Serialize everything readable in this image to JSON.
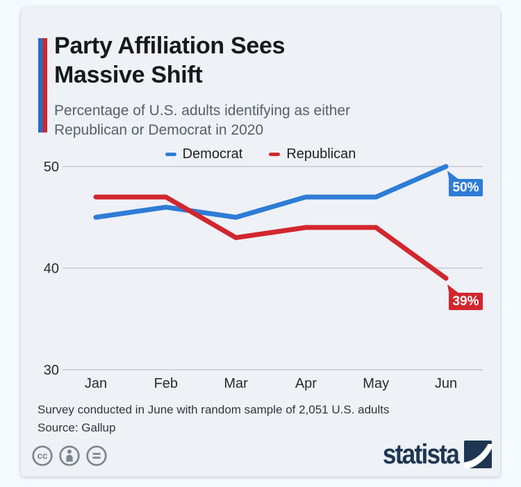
{
  "header": {
    "title": "Party Affiliation Sees Massive Shift",
    "subtitle": "Percentage of U.S. adults identifying as either Republican or Democrat in 2020"
  },
  "chart_data": {
    "type": "line",
    "title": "Party Affiliation Sees Massive Shift",
    "categories": [
      "Jan",
      "Feb",
      "Mar",
      "Apr",
      "May",
      "Jun"
    ],
    "series": [
      {
        "name": "Democrat",
        "color": "#2e7cd6",
        "values": [
          45,
          46,
          45,
          47,
          47,
          50
        ],
        "end_label": "50%"
      },
      {
        "name": "Republican",
        "color": "#d2262e",
        "values": [
          47,
          47,
          43,
          44,
          44,
          39
        ],
        "end_label": "39%"
      }
    ],
    "yticks": [
      50,
      40,
      30
    ],
    "ylim": [
      30,
      52
    ],
    "xlabel": "",
    "ylabel": "",
    "unit": "%",
    "grid": "horizontal",
    "legend_position": "top-center"
  },
  "footer": {
    "note": "Survey conducted in June with random sample of 2,051 U.S. adults",
    "source": "Source: Gallup",
    "brand": "statista",
    "license_icons": [
      "cc-icon",
      "attribution-icon",
      "equals-icon"
    ]
  },
  "colors": {
    "democrat_blue": "#2e7cd6",
    "republican_red": "#d2262e",
    "accent_blue": "#2a6cc4",
    "accent_red": "#d2262e",
    "card_background": "#eef1f6",
    "page_background": "#f4fafd",
    "brand_navy": "#1e3652",
    "grid_line": "#c5cacf",
    "icon_gray": "#7e858c"
  }
}
